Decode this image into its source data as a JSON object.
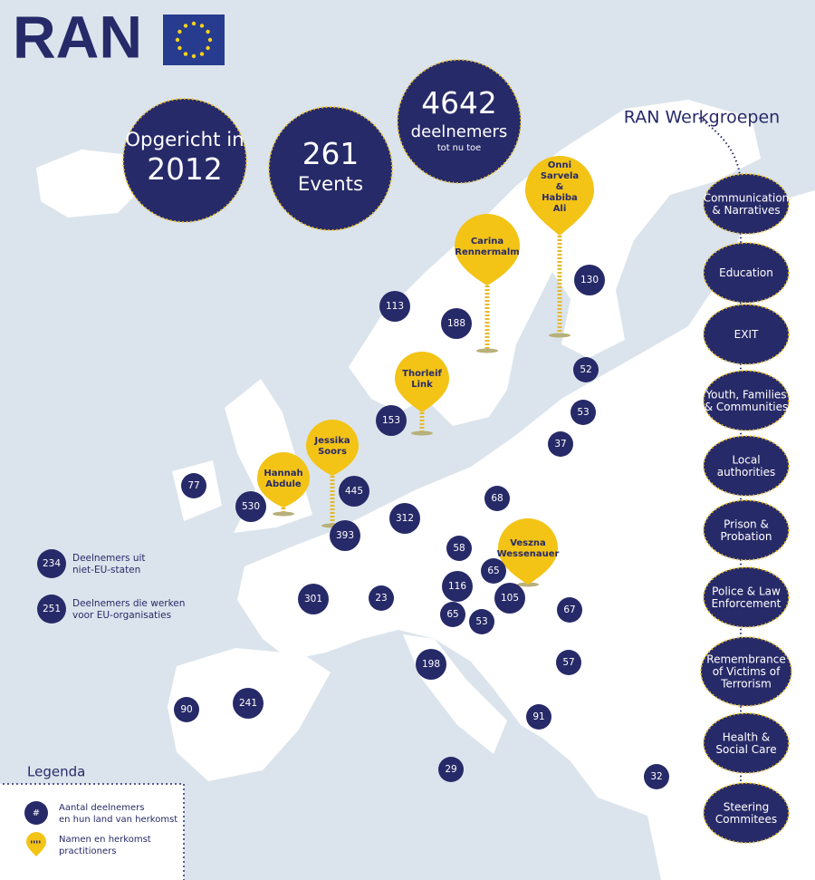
{
  "logo": {
    "text": "RAN"
  },
  "stats": [
    {
      "lines": [
        "Opgericht in",
        2012
      ]
    },
    {
      "lines": [
        261,
        "Events"
      ]
    },
    {
      "lines": [
        4642,
        "deelnemers",
        "tot nu toe"
      ]
    }
  ],
  "working_groups": {
    "title": "RAN Werkgroepen",
    "groups": [
      [
        "Communication",
        "& Narratives"
      ],
      [
        "Education"
      ],
      [
        "EXIT"
      ],
      [
        "Youth, Families",
        "& Communities"
      ],
      [
        "Local",
        "authorities"
      ],
      [
        "Prison &",
        "Probation"
      ],
      [
        "Police & Law",
        "Enforcement"
      ],
      [
        "Remembrance",
        "of Victims of",
        "Terrorism"
      ],
      [
        "Health &",
        "Social Care"
      ],
      [
        "Steering",
        "Commitees"
      ]
    ]
  },
  "practitioners": [
    [
      "Onni",
      "Sarvela",
      "&",
      "Habiba",
      "Ali"
    ],
    [
      "Carina",
      "Rennermalm"
    ],
    [
      "Thorleif",
      "Link"
    ],
    [
      "Jessika",
      "Soors"
    ],
    [
      "Hannah",
      "Abdule"
    ],
    [
      "Veszna",
      "Wessenauer"
    ]
  ],
  "participant_counts": [
    113,
    188,
    130,
    52,
    53,
    153,
    37,
    77,
    530,
    445,
    68,
    312,
    393,
    58,
    65,
    116,
    301,
    23,
    105,
    67,
    65,
    53,
    198,
    57,
    90,
    241,
    91,
    29,
    32
  ],
  "map_legend": [
    {
      "value": 234,
      "lines": [
        "Deelnemers uit",
        "niet-EU-staten"
      ]
    },
    {
      "value": 251,
      "lines": [
        "Deelnemers die werken",
        "voor EU-organisaties"
      ]
    }
  ],
  "legend": {
    "title": "Legenda",
    "items": [
      {
        "symbol": "#",
        "lines": [
          "Aantal deelnemers",
          "en hun land van herkomst"
        ]
      },
      {
        "lines": [
          "Namen en herkomst",
          "practitioners"
        ]
      }
    ]
  }
}
